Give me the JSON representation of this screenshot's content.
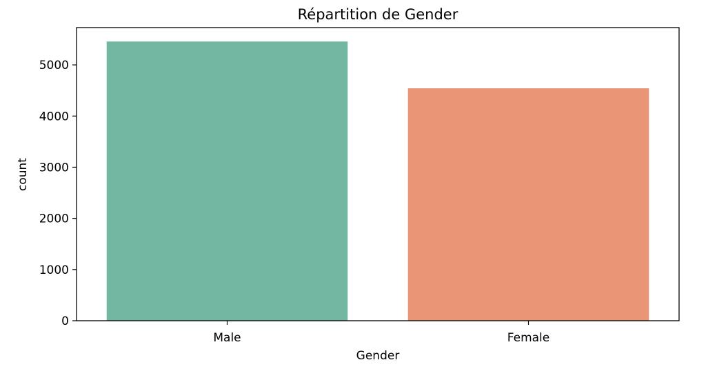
{
  "chart_data": {
    "type": "bar",
    "title": "Répartition de Gender",
    "xlabel": "Gender",
    "ylabel": "count",
    "categories": [
      "Male",
      "Female"
    ],
    "values": [
      5457,
      4543
    ],
    "colors": [
      "#73b6a1",
      "#e99576"
    ],
    "ylim": [
      0,
      5729
    ],
    "yticks": [
      0,
      1000,
      2000,
      3000,
      4000,
      5000
    ],
    "grid": false,
    "legend": "none"
  }
}
